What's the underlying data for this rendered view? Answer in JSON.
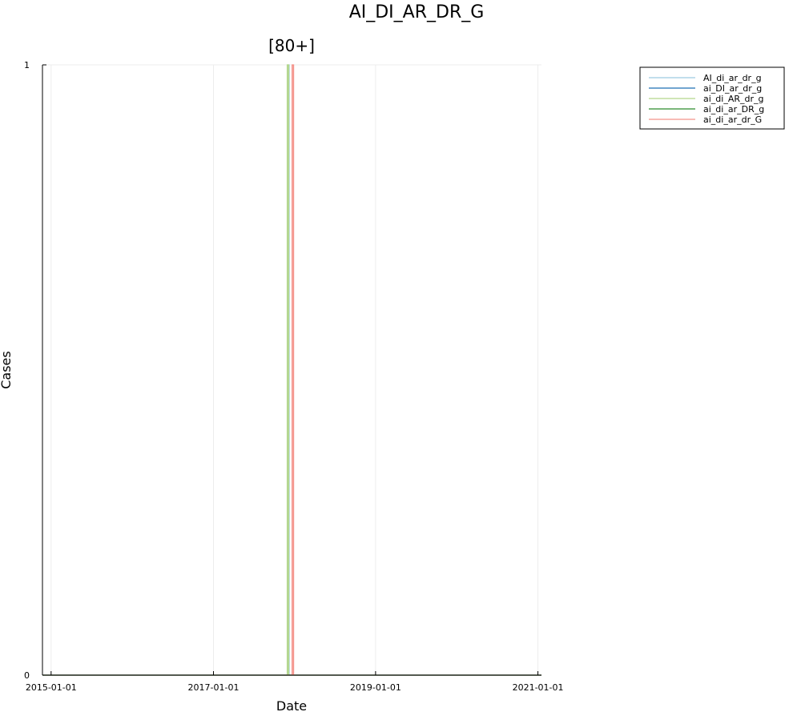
{
  "suptitle": "AI_DI_AR_DR_G",
  "chart_data": {
    "type": "line",
    "title": "[80+]",
    "xlabel": "Date",
    "ylabel": "Cases",
    "xlim": [
      "2014-11-23",
      "2021-01-17"
    ],
    "ylim": [
      0,
      1
    ],
    "x_ticks": [
      "2015-01-01",
      "2017-01-01",
      "2019-01-01",
      "2021-01-01"
    ],
    "y_ticks": [
      0,
      1
    ],
    "grid": true,
    "legend_position": "top-right, outside plot area",
    "series": [
      {
        "name": "AI_di_ar_dr_g",
        "color": "#9ecae1",
        "points": [
          [
            "2014-11-23",
            0
          ],
          [
            "2017-12-01",
            0
          ],
          [
            "2017-12-01",
            1
          ],
          [
            "2017-12-08",
            1
          ],
          [
            "2017-12-08",
            0
          ],
          [
            "2021-01-17",
            0
          ]
        ]
      },
      {
        "name": "ai_DI_ar_dr_g",
        "color": "#1f6fb4",
        "points": [
          [
            "2014-11-23",
            0
          ],
          [
            "2021-01-17",
            0
          ]
        ]
      },
      {
        "name": "ai_di_AR_dr_g",
        "color": "#b5d88a",
        "points": [
          [
            "2014-11-23",
            0
          ],
          [
            "2017-11-29",
            0
          ],
          [
            "2017-11-29",
            1
          ],
          [
            "2017-12-06",
            1
          ],
          [
            "2017-12-06",
            0
          ],
          [
            "2021-01-17",
            0
          ]
        ]
      },
      {
        "name": "ai_di_ar_DR_g",
        "color": "#2a8b2a",
        "points": [
          [
            "2014-11-23",
            0
          ],
          [
            "2021-01-17",
            0
          ]
        ]
      },
      {
        "name": "ai_di_ar_dr_G",
        "color": "#f4928a",
        "points": [
          [
            "2014-11-23",
            0
          ],
          [
            "2017-12-21",
            0
          ],
          [
            "2017-12-21",
            1
          ],
          [
            "2017-12-28",
            1
          ],
          [
            "2017-12-28",
            0
          ],
          [
            "2021-01-17",
            0
          ]
        ]
      }
    ]
  }
}
